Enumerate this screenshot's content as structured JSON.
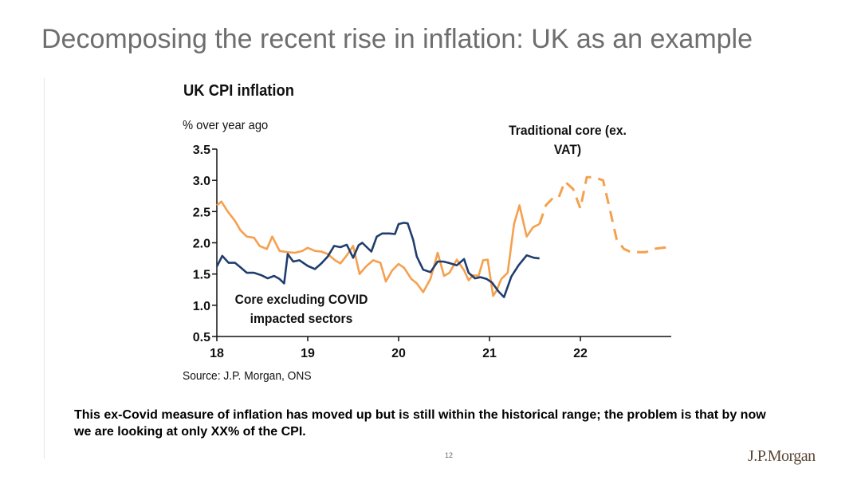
{
  "slide": {
    "title": "Decomposing the recent rise in inflation: UK as an example",
    "caption": "This ex-Covid measure of inflation has moved up but is still within the historical range; the problem is that by now we are looking at only XX% of the CPI.",
    "page_number": "12",
    "logo": "J.P.Morgan"
  },
  "chart_data": {
    "type": "line",
    "title": "UK CPI inflation",
    "ylabel": "% over year ago",
    "xlabel": "",
    "source": "Source: J.P. Morgan, ONS",
    "ylim": [
      0.5,
      3.5
    ],
    "xlim": [
      2018.0,
      2023.0
    ],
    "y_ticks": [
      "0.5",
      "1.0",
      "1.5",
      "2.0",
      "2.5",
      "3.0",
      "3.5"
    ],
    "x_ticks": [
      {
        "label": "18",
        "value": 2018.0
      },
      {
        "label": "19",
        "value": 2019.0
      },
      {
        "label": "20",
        "value": 2020.0
      },
      {
        "label": "21",
        "value": 2021.0
      },
      {
        "label": "22",
        "value": 2022.0
      }
    ],
    "annotations": [
      "Core excluding COVID impacted sectors",
      "Traditional core (ex. VAT)"
    ],
    "series": [
      {
        "name": "Core excluding COVID impacted sectors",
        "color": "#1f3e6e",
        "style": "solid",
        "x": [
          2018.0,
          2018.06,
          2018.13,
          2018.2,
          2018.25,
          2018.33,
          2018.41,
          2018.49,
          2018.56,
          2018.63,
          2018.69,
          2018.74,
          2018.78,
          2018.84,
          2018.91,
          2019.0,
          2019.08,
          2019.15,
          2019.22,
          2019.29,
          2019.36,
          2019.43,
          2019.5,
          2019.56,
          2019.6,
          2019.7,
          2019.76,
          2019.82,
          2019.9,
          2019.96,
          2020.0,
          2020.06,
          2020.1,
          2020.16,
          2020.2,
          2020.27,
          2020.35,
          2020.43,
          2020.49,
          2020.55,
          2020.64,
          2020.72,
          2020.77,
          2020.84,
          2020.9,
          2020.97,
          2021.03,
          2021.1,
          2021.16,
          2021.24,
          2021.32,
          2021.41,
          2021.49,
          2021.55
        ],
        "y": [
          1.62,
          1.79,
          1.68,
          1.68,
          1.62,
          1.52,
          1.52,
          1.48,
          1.43,
          1.47,
          1.42,
          1.35,
          1.82,
          1.7,
          1.72,
          1.63,
          1.58,
          1.67,
          1.78,
          1.95,
          1.93,
          1.97,
          1.76,
          1.96,
          2.0,
          1.86,
          2.1,
          2.15,
          2.15,
          2.14,
          2.3,
          2.32,
          2.31,
          2.05,
          1.78,
          1.57,
          1.53,
          1.7,
          1.7,
          1.68,
          1.64,
          1.74,
          1.52,
          1.43,
          1.45,
          1.42,
          1.36,
          1.22,
          1.13,
          1.46,
          1.64,
          1.8,
          1.76,
          1.75
        ]
      },
      {
        "name": "Traditional core (ex. VAT)",
        "color": "#f5a04e",
        "style": "solid",
        "x": [
          2018.0,
          2018.05,
          2018.12,
          2018.2,
          2018.26,
          2018.33,
          2018.41,
          2018.47,
          2018.55,
          2018.61,
          2018.69,
          2018.78,
          2018.86,
          2018.94,
          2019.0,
          2019.08,
          2019.15,
          2019.22,
          2019.3,
          2019.36,
          2019.43,
          2019.5,
          2019.57,
          2019.64,
          2019.72,
          2019.8,
          2019.86,
          2019.93,
          2020.0,
          2020.06,
          2020.14,
          2020.2,
          2020.27,
          2020.35,
          2020.43,
          2020.5,
          2020.56,
          2020.64,
          2020.72,
          2020.77,
          2020.82,
          2020.88,
          2020.93,
          2020.98,
          2021.04,
          2021.08,
          2021.13,
          2021.2,
          2021.27,
          2021.33,
          2021.41,
          2021.48,
          2021.55
        ],
        "y": [
          2.6,
          2.66,
          2.5,
          2.35,
          2.2,
          2.1,
          2.08,
          1.95,
          1.9,
          2.1,
          1.87,
          1.85,
          1.84,
          1.87,
          1.92,
          1.87,
          1.86,
          1.82,
          1.72,
          1.67,
          1.8,
          1.95,
          1.5,
          1.62,
          1.72,
          1.68,
          1.38,
          1.56,
          1.66,
          1.6,
          1.42,
          1.35,
          1.21,
          1.42,
          1.84,
          1.47,
          1.52,
          1.73,
          1.56,
          1.4,
          1.48,
          1.47,
          1.72,
          1.73,
          1.15,
          1.24,
          1.42,
          1.52,
          2.3,
          2.6,
          2.1,
          2.25,
          2.3
        ]
      },
      {
        "name": "Traditional core (ex. VAT) forecast",
        "color": "#f5a04e",
        "style": "dashed",
        "x": [
          2021.55,
          2021.62,
          2021.7,
          2021.76,
          2021.83,
          2021.92,
          2022.0,
          2022.07,
          2022.15,
          2022.25,
          2022.33,
          2022.4,
          2022.48,
          2022.56,
          2022.63,
          2022.72,
          2022.8,
          2022.9,
          2022.97
        ],
        "y": [
          2.3,
          2.6,
          2.72,
          2.72,
          2.98,
          2.86,
          2.55,
          3.05,
          3.05,
          3.0,
          2.5,
          2.05,
          1.9,
          1.85,
          1.85,
          1.85,
          1.9,
          1.92,
          1.93
        ]
      }
    ]
  }
}
